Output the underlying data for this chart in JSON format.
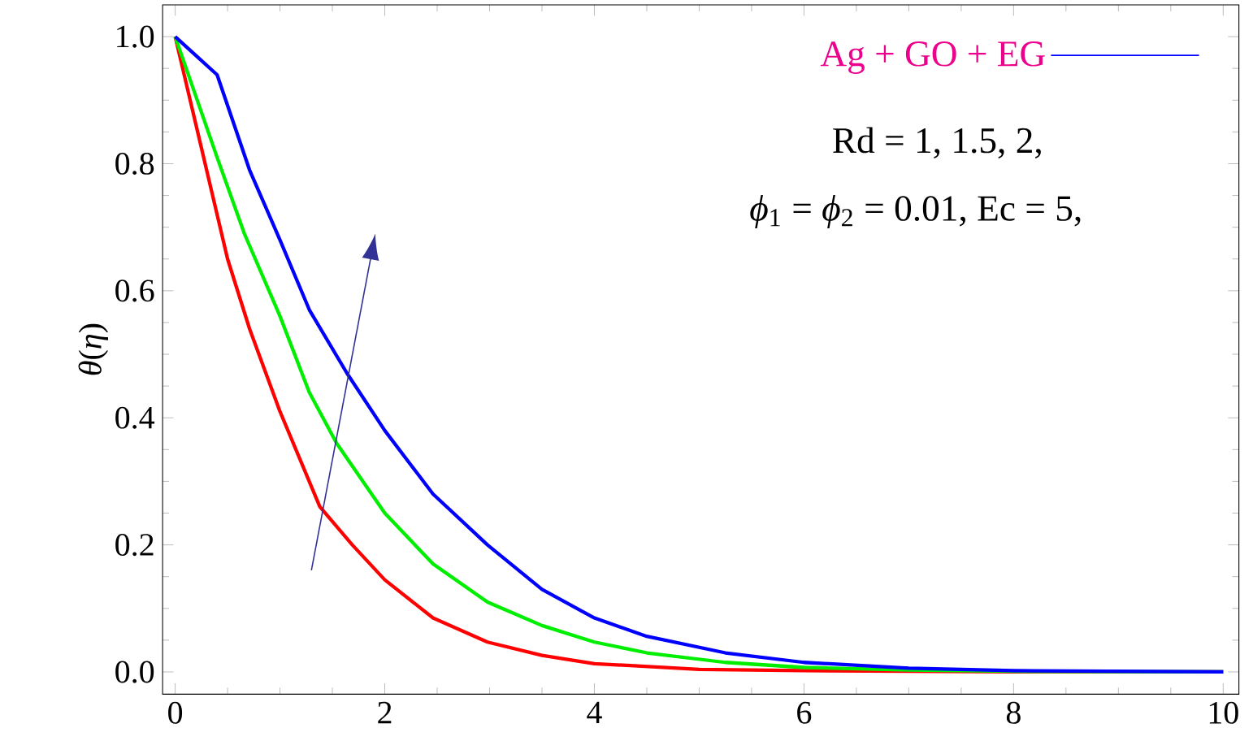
{
  "chart_data": {
    "type": "line",
    "ylabel": "*θ*(*η*)",
    "annotations": [
      "Rd = 1, 1.5, 2,",
      "*ϕ*$_{1}$ = *ϕ*$_{2}$ = 0.01, Ec = 5,"
    ],
    "series": [
      {
        "color": "#ff0000",
        "x": [
          0,
          0.3,
          0.5,
          0.71,
          1.0,
          1.38,
          1.69,
          2.0,
          2.46,
          2.98,
          3.5,
          4.0,
          5.0,
          6.0,
          7.0,
          8.0,
          10.0
        ],
        "values": [
          1.0,
          0.79,
          0.65,
          0.54,
          0.41,
          0.26,
          0.2,
          0.145,
          0.085,
          0.047,
          0.026,
          0.013,
          0.004,
          0.002,
          0.001,
          0.0,
          0.0
        ]
      },
      {
        "color": "#00ee00",
        "x": [
          0,
          0.4,
          0.66,
          1.0,
          1.28,
          1.54,
          2.0,
          2.46,
          2.98,
          3.5,
          4.0,
          4.5,
          5.25,
          6.0,
          7.0,
          8.0,
          10.0
        ],
        "values": [
          1.0,
          0.81,
          0.69,
          0.56,
          0.44,
          0.36,
          0.25,
          0.17,
          0.11,
          0.073,
          0.047,
          0.03,
          0.015,
          0.007,
          0.003,
          0.001,
          0.0
        ]
      },
      {
        "name": "Ag + GO + EG",
        "color": "#0000ff",
        "x": [
          0,
          0.4,
          0.71,
          1.0,
          1.28,
          1.64,
          2.0,
          2.46,
          2.98,
          3.5,
          4.0,
          4.5,
          5.25,
          6.0,
          7.0,
          8.0,
          10.0
        ],
        "values": [
          1.0,
          0.94,
          0.79,
          0.68,
          0.57,
          0.47,
          0.38,
          0.28,
          0.2,
          0.13,
          0.085,
          0.056,
          0.03,
          0.015,
          0.006,
          0.002,
          0.0
        ]
      }
    ],
    "xlim": [
      -0.12,
      10.15
    ],
    "ylim": [
      -0.035,
      1.05
    ],
    "xticks": [
      0,
      2,
      4,
      6,
      8,
      10
    ],
    "yticks": [
      {
        "value": 0,
        "label": "0.0"
      },
      {
        "value": 0.2,
        "label": "0.2"
      },
      {
        "value": 0.4,
        "label": "0.4"
      },
      {
        "value": 0.6,
        "label": "0.6"
      },
      {
        "value": 0.8,
        "label": "0.8"
      },
      {
        "value": 1.0,
        "label": "1.0"
      }
    ],
    "legend": "top right",
    "marker": "none",
    "line_style": "solid"
  }
}
